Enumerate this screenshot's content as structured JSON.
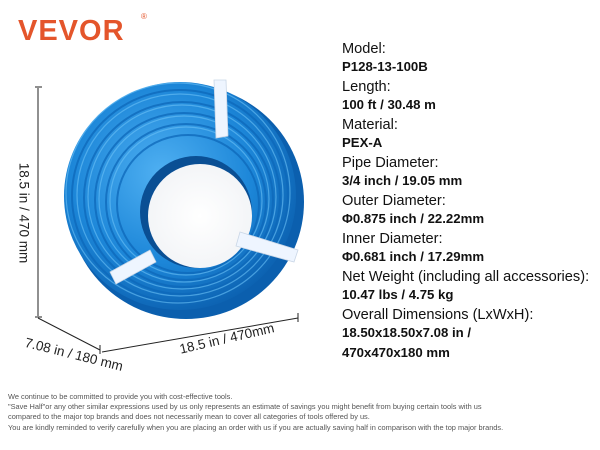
{
  "brand": {
    "logo_text": "VEVOR",
    "registered_mark": "®",
    "color": "#e4552b"
  },
  "product": {
    "color": "#1c86d8",
    "strap_color": "#eef5ff",
    "dimensions": {
      "height": "18.5 in / 470 mm",
      "depth": "7.08 in / 180 mm",
      "width": "18.5 in / 470mm"
    }
  },
  "specs": [
    {
      "label": "Model:",
      "value": "P128-13-100B"
    },
    {
      "label": "Length:",
      "value": "100 ft / 30.48 m"
    },
    {
      "label": "Material:",
      "value": "PEX-A"
    },
    {
      "label": "Pipe Diameter:",
      "value": "3/4 inch / 19.05 mm"
    },
    {
      "label": "Outer Diameter:",
      "value": "Φ0.875 inch / 22.22mm"
    },
    {
      "label": "Inner Diameter:",
      "value": "Φ0.681 inch / 17.29mm"
    },
    {
      "label": "Net Weight (including all accessories):",
      "value": "10.47 lbs / 4.75 kg"
    },
    {
      "label": "Overall Dimensions (LxWxH):",
      "value": "18.50x18.50x7.08 in /",
      "value_line2": "470x470x180 mm"
    }
  ],
  "disclaimer": [
    "We continue to be committed to provide you with cost-effective tools.",
    "\"Save Half\"or any other similar expressions used by us only represents an estimate of savings you might benefit from buying certain tools with us",
    "compared to the major top brands and does not necessarily mean to cover all categories of tools offered by us.",
    "You are kindly reminded to verify carefully when you are placing an order with us if you are actually saving half in comparison with the top major brands."
  ]
}
